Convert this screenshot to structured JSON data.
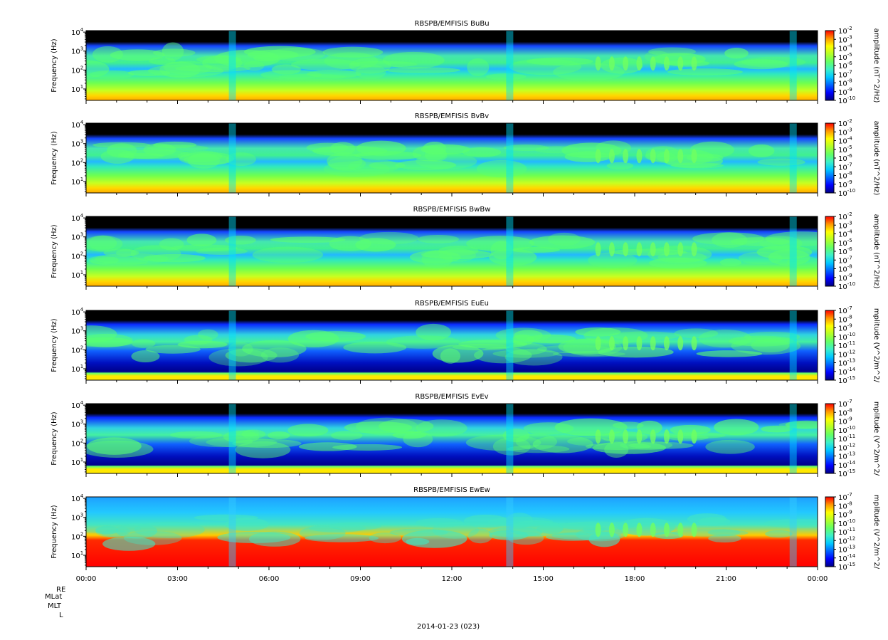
{
  "chart_data": {
    "type": "heatmap",
    "instrument": "RBSPB/EMFISIS",
    "xlabel": "",
    "x_ticks": [
      "00:00",
      "03:00",
      "06:00",
      "09:00",
      "12:00",
      "15:00",
      "18:00",
      "21:00",
      "00:00"
    ],
    "x_range_hours": [
      0,
      24
    ],
    "date_label": "2014-01-23 (023)",
    "ephemeris_labels": [
      "RE",
      "MLat",
      "MLT",
      "L"
    ],
    "ylabel": "Frequency (Hz)",
    "y_scale": "log",
    "y_range_hz": [
      2.5,
      12000
    ],
    "y_tick_exponents": [
      "4",
      "3",
      "2",
      "1"
    ],
    "palette": [
      "#000080",
      "#0000ff",
      "#0064ff",
      "#00c8ff",
      "#3cf0c8",
      "#64ff64",
      "#b4ff28",
      "#ffff00",
      "#ff9600",
      "#ff0000"
    ],
    "panels": [
      {
        "title": "RBSPB/EMFISIS  BuBu",
        "component": "BuBu",
        "colorbar_label": "amplitude (nT^2/Hz)",
        "colorbar_exponents": [
          "-2",
          "-3",
          "-4",
          "-5",
          "-6",
          "-7",
          "-8",
          "-9",
          "-10"
        ],
        "colorbar_range_log10": [
          -10,
          -2
        ]
      },
      {
        "title": "RBSPB/EMFISIS  BvBv",
        "component": "BvBv",
        "colorbar_label": "amplitude (nT^2/Hz)",
        "colorbar_exponents": [
          "-2",
          "-3",
          "-4",
          "-5",
          "-6",
          "-7",
          "-8",
          "-9",
          "-10"
        ],
        "colorbar_range_log10": [
          -10,
          -2
        ]
      },
      {
        "title": "RBSPB/EMFISIS  BwBw",
        "component": "BwBw",
        "colorbar_label": "amplitude (nT^2/Hz)",
        "colorbar_exponents": [
          "-2",
          "-3",
          "-4",
          "-5",
          "-6",
          "-7",
          "-8",
          "-9",
          "-10"
        ],
        "colorbar_range_log10": [
          -10,
          -2
        ]
      },
      {
        "title": "RBSPB/EMFISIS  EuEu",
        "component": "EuEu",
        "colorbar_label": "mplitude (V^2/m^2/",
        "colorbar_exponents": [
          "-7",
          "-8",
          "-9",
          "-10",
          "-11",
          "-12",
          "-13",
          "-14",
          "-15"
        ],
        "colorbar_range_log10": [
          -15,
          -7
        ]
      },
      {
        "title": "RBSPB/EMFISIS  EvEv",
        "component": "EvEv",
        "colorbar_label": "mplitude (V^2/m^2/",
        "colorbar_exponents": [
          "-7",
          "-8",
          "-9",
          "-10",
          "-11",
          "-12",
          "-13",
          "-14",
          "-15"
        ],
        "colorbar_range_log10": [
          -15,
          -7
        ]
      },
      {
        "title": "RBSPB/EMFISIS  EwEw",
        "component": "EwEw",
        "colorbar_label": "mplitude (V^2/m^2/",
        "colorbar_exponents": [
          "-7",
          "-8",
          "-9",
          "-10",
          "-11",
          "-12",
          "-13",
          "-14",
          "-15"
        ],
        "colorbar_range_log10": [
          -15,
          -7
        ]
      }
    ]
  }
}
